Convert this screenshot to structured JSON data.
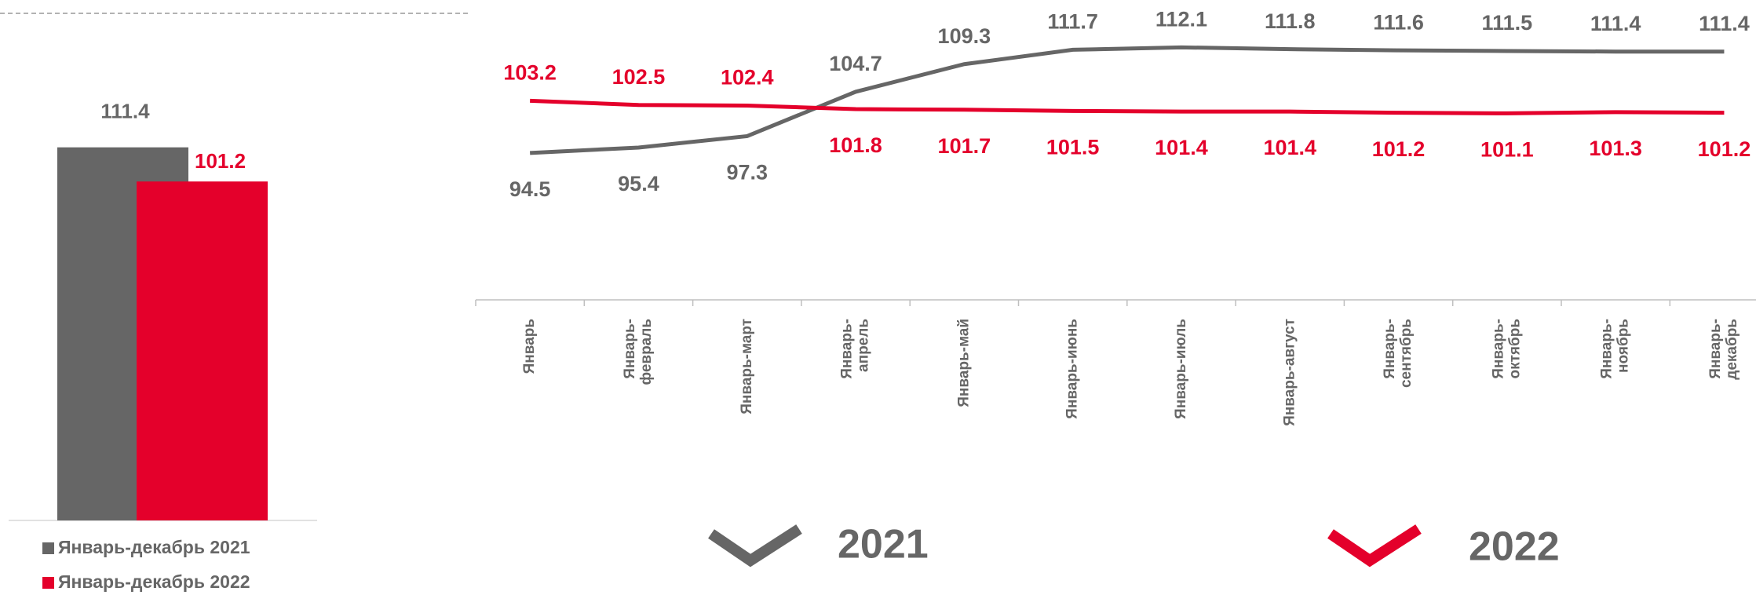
{
  "chart_data": [
    {
      "type": "bar",
      "series": [
        {
          "name": "Январь-декабрь 2021",
          "color": "#666666",
          "values": [
            111.4
          ]
        },
        {
          "name": "Январь-декабрь 2022",
          "color": "#e4002b",
          "values": [
            101.2
          ]
        }
      ],
      "ylim": [
        0,
        120
      ]
    },
    {
      "type": "line",
      "categories": [
        "Январь",
        "Январь-февраль",
        "Январь-март",
        "Январь-апрель",
        "Январь-май",
        "Январь-июнь",
        "Январь-июль",
        "Январь-август",
        "Январь-сентябрь",
        "Январь-октябрь",
        "Январь-ноябрь",
        "Январь-декабрь"
      ],
      "series": [
        {
          "name": "2021",
          "color": "#666666",
          "values": [
            94.5,
            95.4,
            97.3,
            104.7,
            109.3,
            111.7,
            112.1,
            111.8,
            111.6,
            111.5,
            111.4,
            111.4
          ]
        },
        {
          "name": "2022",
          "color": "#e4002b",
          "values": [
            103.2,
            102.5,
            102.4,
            101.8,
            101.7,
            101.5,
            101.4,
            101.4,
            101.2,
            101.1,
            101.3,
            101.2
          ]
        }
      ],
      "ylim": [
        70,
        120
      ]
    }
  ]
}
